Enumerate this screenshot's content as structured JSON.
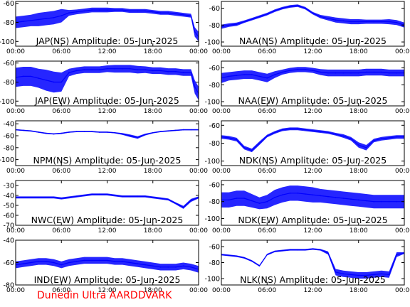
{
  "footer": "Dunedin Ultra AARDDVARK",
  "colors": {
    "trace": "#0000ff",
    "axis": "#000000",
    "footer": "#ff0000"
  },
  "x_tick_labels": [
    "00:00",
    "06:00",
    "12:00",
    "18:00",
    "00:00"
  ],
  "chart_data": [
    {
      "type": "line",
      "title": "JAP(NS) Amplitude: 05-Jun-2025",
      "ylim": [
        -105,
        -58
      ],
      "yticks": [
        -100,
        -80,
        -60
      ],
      "xlim": [
        0,
        24
      ],
      "series": [
        {
          "x": [
            0,
            1,
            2,
            3,
            4,
            5,
            6,
            7,
            8,
            9,
            10,
            11,
            12,
            13,
            14,
            15,
            16,
            17,
            18,
            19,
            20,
            21,
            22,
            23,
            23.5,
            24
          ],
          "y": [
            -80,
            -79,
            -78,
            -77,
            -76,
            -75,
            -73,
            -70,
            -69,
            -68,
            -67,
            -67,
            -67,
            -67,
            -67,
            -68,
            -68,
            -68,
            -69,
            -70,
            -70,
            -71,
            -72,
            -73,
            -90,
            -95
          ],
          "band": [
            12,
            12,
            12,
            14,
            14,
            14,
            14,
            6,
            5,
            5,
            5,
            5,
            5,
            4,
            4,
            4,
            4,
            4,
            4,
            4,
            4,
            4,
            4,
            4,
            10,
            10
          ]
        }
      ]
    },
    {
      "type": "line",
      "title": "NAA(NS) Amplitude: 05-Jun-2025",
      "ylim": [
        -105,
        -52
      ],
      "yticks": [
        -100,
        -80,
        -60
      ],
      "xlim": [
        0,
        24
      ],
      "series": [
        {
          "x": [
            0,
            1,
            2,
            3,
            4,
            5,
            6,
            7,
            8,
            9,
            10,
            11,
            12,
            13,
            14,
            15,
            16,
            17,
            18,
            19,
            20,
            21,
            22,
            23,
            24
          ],
          "y": [
            -82,
            -80,
            -79,
            -76,
            -73,
            -70,
            -67,
            -63,
            -60,
            -58,
            -57,
            -60,
            -66,
            -70,
            -72,
            -74,
            -75,
            -76,
            -76,
            -76,
            -76,
            -76,
            -76,
            -77,
            -80
          ],
          "band": [
            5,
            4,
            4,
            3,
            3,
            3,
            3,
            3,
            3,
            3,
            3,
            3,
            3,
            4,
            5,
            6,
            6,
            6,
            6,
            5,
            5,
            5,
            6,
            6,
            6
          ]
        }
      ]
    },
    {
      "type": "line",
      "title": "JAP(EW) Amplitude: 05-Jun-2025",
      "ylim": [
        -105,
        -58
      ],
      "yticks": [
        -100,
        -80,
        -60
      ],
      "xlim": [
        0,
        24
      ],
      "series": [
        {
          "x": [
            0,
            1,
            2,
            3,
            4,
            5,
            6,
            7,
            8,
            9,
            10,
            11,
            12,
            13,
            14,
            15,
            16,
            17,
            18,
            19,
            20,
            21,
            22,
            23,
            23.5,
            24
          ],
          "y": [
            -75,
            -74,
            -74,
            -76,
            -78,
            -80,
            -80,
            -70,
            -68,
            -67,
            -67,
            -67,
            -66,
            -66,
            -66,
            -66,
            -67,
            -67,
            -68,
            -68,
            -69,
            -69,
            -70,
            -70,
            -85,
            -92
          ],
          "band": [
            20,
            20,
            20,
            20,
            22,
            22,
            20,
            8,
            7,
            7,
            7,
            7,
            7,
            8,
            8,
            8,
            8,
            7,
            7,
            7,
            7,
            7,
            7,
            7,
            14,
            14
          ]
        }
      ]
    },
    {
      "type": "line",
      "title": "NAA(EW) Amplitude: 05-Jun-2025",
      "ylim": [
        -105,
        -52
      ],
      "yticks": [
        -100,
        -80,
        -60
      ],
      "xlim": [
        0,
        24
      ],
      "series": [
        {
          "x": [
            0,
            1,
            2,
            3,
            4,
            5,
            6,
            7,
            8,
            9,
            10,
            11,
            12,
            13,
            14,
            15,
            16,
            17,
            18,
            19,
            20,
            21,
            22,
            23,
            24
          ],
          "y": [
            -72,
            -70,
            -69,
            -68,
            -68,
            -70,
            -72,
            -68,
            -65,
            -63,
            -62,
            -62,
            -63,
            -65,
            -66,
            -66,
            -66,
            -66,
            -66,
            -65,
            -65,
            -65,
            -66,
            -66,
            -66
          ],
          "band": [
            12,
            10,
            10,
            10,
            10,
            10,
            10,
            8,
            6,
            6,
            6,
            6,
            6,
            7,
            8,
            8,
            8,
            8,
            8,
            8,
            8,
            8,
            8,
            8,
            8
          ]
        }
      ]
    },
    {
      "type": "line",
      "title": "NPM(NS) Amplitude: 05-Jun-2025",
      "ylim": [
        -110,
        -35
      ],
      "yticks": [
        -100,
        -80,
        -60,
        -40
      ],
      "xlim": [
        0,
        24
      ],
      "series": [
        {
          "x": [
            0,
            1,
            2,
            3,
            4,
            5,
            6,
            7,
            8,
            9,
            10,
            11,
            12,
            13,
            14,
            15,
            16,
            17,
            18,
            19,
            20,
            21,
            22,
            23,
            24
          ],
          "y": [
            -50,
            -51,
            -52,
            -54,
            -56,
            -57,
            -56,
            -54,
            -53,
            -53,
            -53,
            -54,
            -54,
            -55,
            -57,
            -60,
            -63,
            -58,
            -55,
            -53,
            -52,
            -51,
            -50,
            -50,
            -50
          ],
          "band": [
            2,
            2,
            2,
            2,
            2,
            2,
            2,
            2,
            2,
            2,
            2,
            2,
            2,
            2,
            3,
            4,
            4,
            3,
            2,
            2,
            2,
            2,
            2,
            2,
            2
          ]
        }
      ]
    },
    {
      "type": "line",
      "title": "NDK(NS) Amplitude: 05-Jun-2025",
      "ylim": [
        -105,
        -55
      ],
      "yticks": [
        -100,
        -80,
        -60
      ],
      "xlim": [
        0,
        24
      ],
      "series": [
        {
          "x": [
            0,
            1,
            2,
            3,
            4,
            5,
            6,
            7,
            8,
            9,
            10,
            11,
            12,
            13,
            14,
            15,
            16,
            17,
            18,
            19,
            20,
            21,
            22,
            23,
            24
          ],
          "y": [
            -73,
            -74,
            -76,
            -85,
            -88,
            -80,
            -72,
            -68,
            -65,
            -64,
            -64,
            -65,
            -66,
            -67,
            -68,
            -70,
            -72,
            -75,
            -82,
            -85,
            -77,
            -75,
            -74,
            -73,
            -73
          ],
          "band": [
            4,
            4,
            4,
            4,
            4,
            4,
            3,
            3,
            3,
            3,
            3,
            3,
            3,
            3,
            3,
            3,
            4,
            4,
            6,
            6,
            4,
            4,
            4,
            4,
            4
          ]
        }
      ]
    },
    {
      "type": "line",
      "title": "NWC(EW) Amplitude: 05-Jun-2025",
      "ylim": [
        -70,
        -25
      ],
      "yticks": [
        -70,
        -60,
        -50,
        -40,
        -30
      ],
      "xlim": [
        0,
        24
      ],
      "series": [
        {
          "x": [
            0,
            1,
            2,
            3,
            4,
            5,
            6,
            7,
            8,
            9,
            10,
            11,
            12,
            13,
            14,
            15,
            16,
            17,
            18,
            19,
            20,
            21,
            22,
            23,
            24
          ],
          "y": [
            -42,
            -42,
            -42,
            -42,
            -42,
            -42,
            -43,
            -42,
            -41,
            -40,
            -39,
            -39,
            -39,
            -40,
            -41,
            -41,
            -41,
            -41,
            -42,
            -43,
            -44,
            -48,
            -52,
            -45,
            -42
          ],
          "band": [
            2,
            2,
            2,
            2,
            2,
            2,
            2,
            2,
            2,
            2,
            2,
            2,
            2,
            2,
            2,
            2,
            2,
            2,
            2,
            2,
            2,
            2,
            3,
            3,
            2
          ]
        }
      ]
    },
    {
      "type": "line",
      "title": "NDK(EW) Amplitude: 05-Jun-2025",
      "ylim": [
        -108,
        -55
      ],
      "yticks": [
        -100,
        -80,
        -60
      ],
      "xlim": [
        0,
        24
      ],
      "series": [
        {
          "x": [
            0,
            1,
            2,
            3,
            4,
            5,
            6,
            7,
            8,
            9,
            10,
            11,
            12,
            13,
            14,
            15,
            16,
            17,
            18,
            19,
            20,
            21,
            22,
            23,
            24
          ],
          "y": [
            -78,
            -78,
            -76,
            -76,
            -79,
            -82,
            -80,
            -75,
            -72,
            -70,
            -70,
            -71,
            -72,
            -73,
            -74,
            -75,
            -76,
            -77,
            -78,
            -79,
            -80,
            -80,
            -80,
            -80,
            -80
          ],
          "band": [
            18,
            18,
            18,
            18,
            16,
            14,
            16,
            18,
            18,
            18,
            18,
            18,
            18,
            16,
            16,
            16,
            16,
            16,
            16,
            16,
            16,
            16,
            16,
            16,
            16
          ]
        }
      ]
    },
    {
      "type": "line",
      "title": "IND(EW) Amplitude: 05-Jun-2025",
      "ylim": [
        -80,
        -40
      ],
      "yticks": [
        -80,
        -60,
        -40
      ],
      "xlim": [
        0,
        24
      ],
      "series": [
        {
          "x": [
            0,
            1,
            2,
            3,
            4,
            5,
            6,
            7,
            8,
            9,
            10,
            11,
            12,
            13,
            14,
            15,
            16,
            17,
            18,
            19,
            20,
            21,
            22,
            23,
            24
          ],
          "y": [
            -62,
            -61,
            -60,
            -59,
            -59,
            -60,
            -62,
            -60,
            -59,
            -58,
            -58,
            -58,
            -58,
            -59,
            -59,
            -60,
            -61,
            -62,
            -63,
            -64,
            -64,
            -64,
            -63,
            -64,
            -66
          ],
          "band": [
            6,
            6,
            6,
            6,
            6,
            6,
            6,
            6,
            6,
            6,
            6,
            6,
            6,
            6,
            6,
            6,
            6,
            6,
            6,
            6,
            6,
            6,
            6,
            6,
            6
          ]
        }
      ]
    },
    {
      "type": "line",
      "title": "NLK(NS) Amplitude: 05-Jun-2025",
      "ylim": [
        -108,
        -52
      ],
      "yticks": [
        -100,
        -80,
        -60
      ],
      "xlim": [
        0,
        24
      ],
      "series": [
        {
          "x": [
            0,
            1,
            2,
            3,
            4,
            5,
            6,
            7,
            8,
            9,
            10,
            11,
            12,
            13,
            14,
            15,
            16,
            17,
            18,
            19,
            20,
            21,
            22,
            23,
            24
          ],
          "y": [
            -70,
            -71,
            -72,
            -74,
            -78,
            -84,
            -70,
            -66,
            -65,
            -64,
            -64,
            -64,
            -63,
            -64,
            -68,
            -92,
            -94,
            -95,
            -96,
            -96,
            -95,
            -94,
            -95,
            -70,
            -68
          ],
          "band": [
            2,
            2,
            2,
            2,
            2,
            2,
            2,
            2,
            2,
            2,
            2,
            2,
            2,
            2,
            4,
            8,
            8,
            8,
            8,
            8,
            8,
            8,
            8,
            6,
            2
          ]
        }
      ]
    }
  ]
}
